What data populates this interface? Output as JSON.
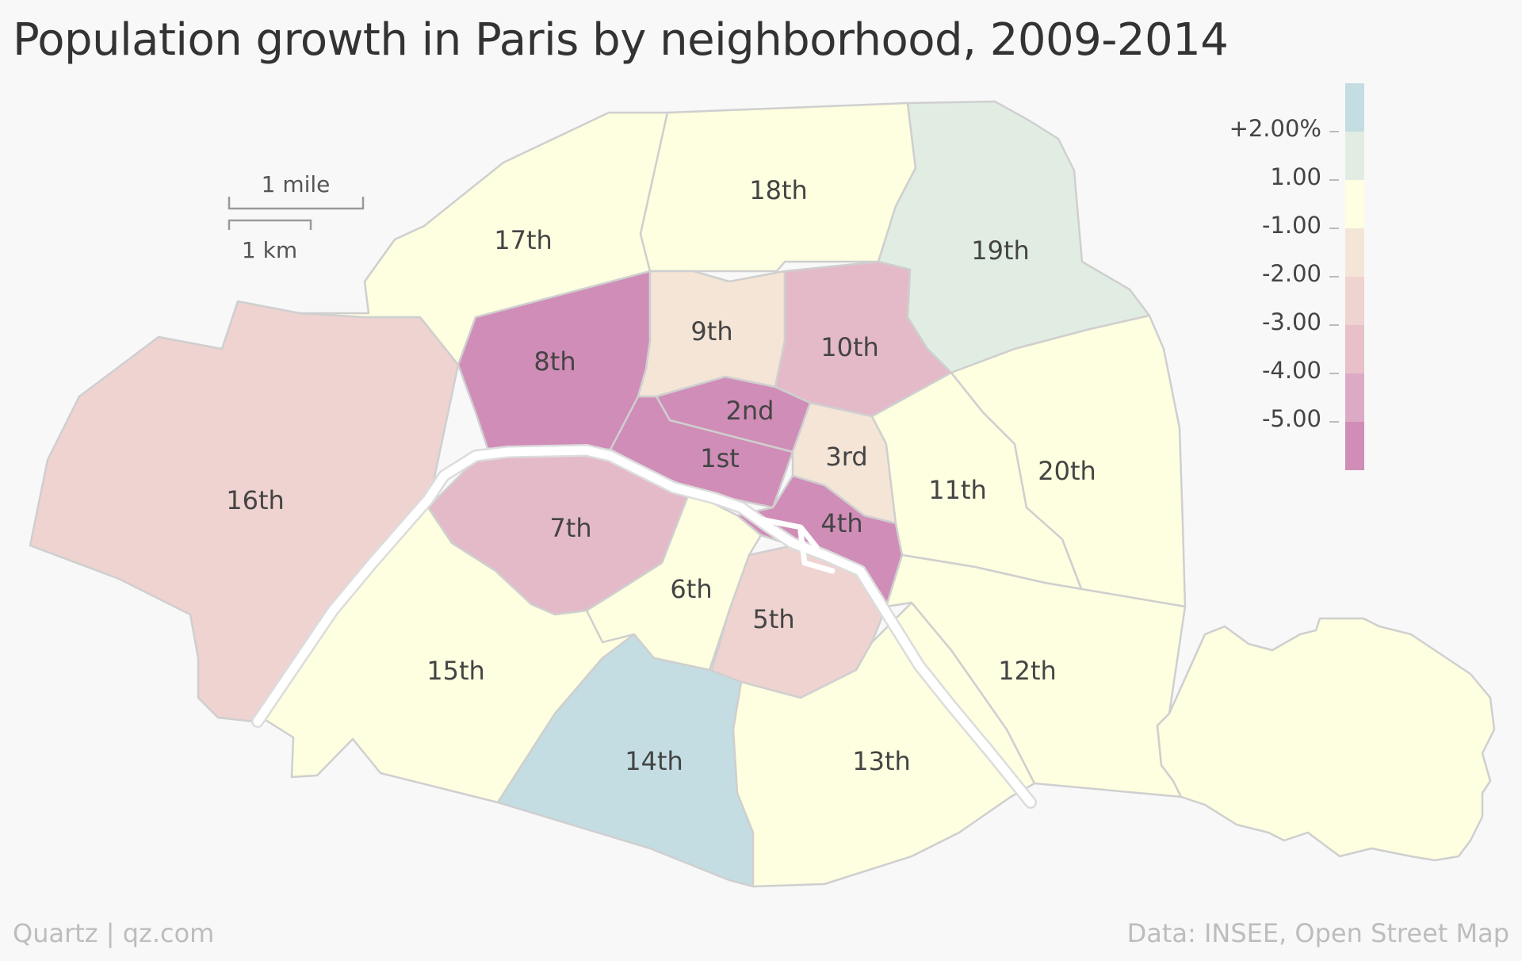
{
  "title": "Population growth in Paris by neighborhood, 2009-2014",
  "scale": {
    "mile_label": "1 mile",
    "km_label": "1 km"
  },
  "legend": {
    "labels": [
      "+2.00%",
      "1.00",
      "-1.00",
      "-2.00",
      "-3.00",
      "-4.00",
      "-5.00"
    ],
    "colors": [
      "#c4dde2",
      "#e1ede3",
      "#fefee0",
      "#f4e5d7",
      "#eed3d0",
      "#e7c0c9",
      "#dcaac5",
      "#d08db7"
    ]
  },
  "districts": [
    {
      "id": "1st",
      "label": "1st",
      "color": "#d08db7"
    },
    {
      "id": "2nd",
      "label": "2nd",
      "color": "#d08db7"
    },
    {
      "id": "3rd",
      "label": "3rd",
      "color": "#f4e5d7"
    },
    {
      "id": "4th",
      "label": "4th",
      "color": "#d08db7"
    },
    {
      "id": "5th",
      "label": "5th",
      "color": "#eed3d0"
    },
    {
      "id": "6th",
      "label": "6th",
      "color": "#fefee0"
    },
    {
      "id": "7th",
      "label": "7th",
      "color": "#e4bac8"
    },
    {
      "id": "8th",
      "label": "8th",
      "color": "#d08db7"
    },
    {
      "id": "9th",
      "label": "9th",
      "color": "#f4e5d7"
    },
    {
      "id": "10th",
      "label": "10th",
      "color": "#e4bac8"
    },
    {
      "id": "11th",
      "label": "11th",
      "color": "#fefee0"
    },
    {
      "id": "12th",
      "label": "12th",
      "color": "#fefee0"
    },
    {
      "id": "13th",
      "label": "13th",
      "color": "#fefee0"
    },
    {
      "id": "14th",
      "label": "14th",
      "color": "#c4dde2"
    },
    {
      "id": "15th",
      "label": "15th",
      "color": "#fefee0"
    },
    {
      "id": "16th",
      "label": "16th",
      "color": "#eed3d0"
    },
    {
      "id": "17th",
      "label": "17th",
      "color": "#fefee0"
    },
    {
      "id": "18th",
      "label": "18th",
      "color": "#fefee0"
    },
    {
      "id": "19th",
      "label": "19th",
      "color": "#e1ede3"
    },
    {
      "id": "20th",
      "label": "20th",
      "color": "#fefee0"
    }
  ],
  "footer": {
    "left": "Quartz | qz.com",
    "right": "Data: INSEE, Open Street Map"
  }
}
